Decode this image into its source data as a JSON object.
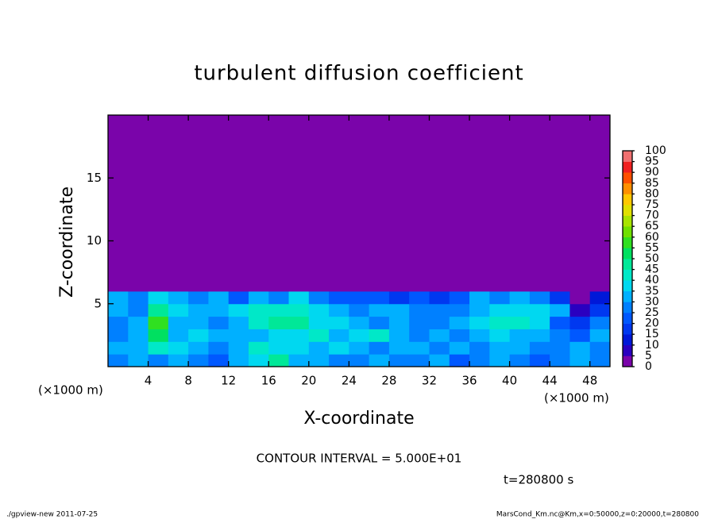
{
  "chart_data": {
    "type": "heatmap",
    "title": "turbulent diffusion coefficient",
    "x_label": "X-coordinate",
    "y_label": "Z-coordinate",
    "x_unit": "(×1000 m)",
    "x_unit_right": "(×1000 m)",
    "contour_note": "CONTOUR INTERVAL = 5.000E+01",
    "time_note": "t=280800 s",
    "footer_left": "./gpview-new  2011-07-25",
    "footer_right": "MarsCond_Km.nc@Km,x=0:50000,z=0:20000,t=280800",
    "xlim": [
      0,
      50
    ],
    "ylim": [
      0,
      20
    ],
    "xticks": [
      4,
      8,
      12,
      16,
      20,
      24,
      28,
      32,
      36,
      40,
      44,
      48
    ],
    "yticks": [
      5,
      10,
      15
    ],
    "x": [
      0,
      2,
      4,
      6,
      8,
      10,
      12,
      14,
      16,
      18,
      20,
      22,
      24,
      26,
      28,
      30,
      32,
      34,
      36,
      38,
      40,
      42,
      44,
      46,
      48,
      50
    ],
    "z": [
      0,
      1,
      2,
      3,
      4,
      5,
      6,
      20
    ],
    "values": [
      [
        28,
        30,
        25,
        30,
        28,
        22,
        30,
        35,
        45,
        30,
        32,
        28,
        25,
        30,
        25,
        28,
        30,
        22,
        28,
        30,
        25,
        20,
        28,
        30,
        25
      ],
      [
        30,
        32,
        40,
        35,
        30,
        28,
        30,
        40,
        35,
        38,
        30,
        35,
        30,
        28,
        32,
        30,
        25,
        30,
        28,
        32,
        30,
        28,
        25,
        30,
        28
      ],
      [
        28,
        30,
        50,
        30,
        35,
        30,
        32,
        30,
        35,
        38,
        40,
        30,
        35,
        40,
        30,
        28,
        30,
        25,
        30,
        35,
        30,
        30,
        28,
        22,
        30
      ],
      [
        25,
        30,
        55,
        32,
        30,
        28,
        30,
        40,
        45,
        45,
        38,
        35,
        30,
        28,
        30,
        28,
        25,
        30,
        35,
        40,
        42,
        35,
        20,
        15,
        25
      ],
      [
        30,
        28,
        45,
        35,
        32,
        30,
        35,
        40,
        40,
        42,
        38,
        30,
        28,
        30,
        30,
        28,
        25,
        25,
        32,
        35,
        38,
        35,
        30,
        5,
        15
      ],
      [
        30,
        25,
        35,
        30,
        25,
        30,
        20,
        30,
        28,
        35,
        25,
        20,
        22,
        20,
        18,
        20,
        15,
        20,
        30,
        25,
        30,
        25,
        15,
        2,
        10
      ],
      [
        2,
        2,
        2,
        2,
        2,
        2,
        2,
        2,
        2,
        2,
        2,
        2,
        2,
        2,
        2,
        2,
        2,
        2,
        2,
        2,
        2,
        2,
        2,
        2,
        2
      ]
    ],
    "levels": [
      0,
      5,
      10,
      15,
      20,
      25,
      30,
      35,
      40,
      45,
      50,
      55,
      60,
      65,
      70,
      75,
      80,
      85,
      90,
      95,
      100
    ],
    "colors": [
      "#7a04aa",
      "#2a00c0",
      "#0018d8",
      "#0038f0",
      "#0058ff",
      "#0080ff",
      "#00b0ff",
      "#00d8f0",
      "#00e8c8",
      "#00e898",
      "#00e060",
      "#30e020",
      "#70e000",
      "#a8e400",
      "#e0e000",
      "#ffc800",
      "#ff9000",
      "#ff5000",
      "#f02020",
      "#f07070"
    ]
  }
}
